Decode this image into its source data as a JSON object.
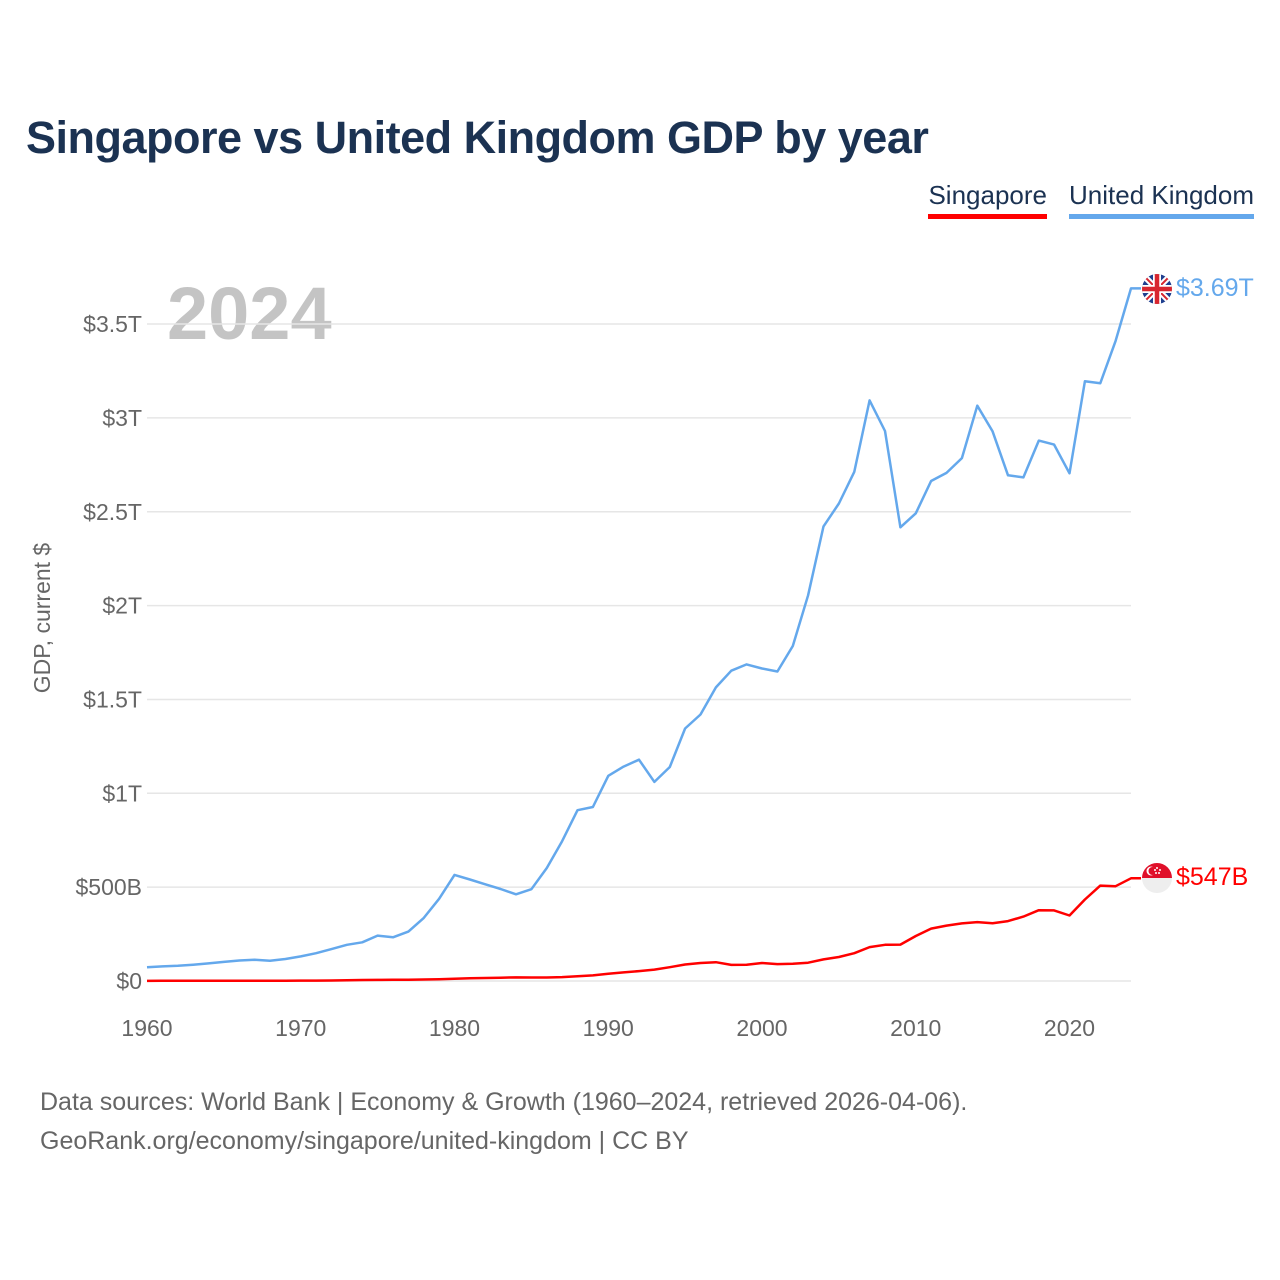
{
  "title": "Singapore vs United Kingdom GDP by year",
  "legend": [
    {
      "label": "Singapore",
      "color": "#ff0000"
    },
    {
      "label": "United Kingdom",
      "color": "#64a8ec"
    }
  ],
  "year_watermark": "2024",
  "source_lines": [
    "Data sources: World Bank | Economy & Growth (1960–2024, retrieved 2026-04-06).",
    "GeoRank.org/economy/singapore/united-kingdom | CC BY"
  ],
  "chart_data": {
    "type": "line",
    "title": "Singapore vs United Kingdom GDP by year",
    "xlabel": "",
    "ylabel": "GDP, current $",
    "xlim": [
      1960,
      2024
    ],
    "ylim": [
      0,
      3.8
    ],
    "y_unit": "trillion USD",
    "grid": true,
    "legend_position": "top-right",
    "x_ticks": [
      1960,
      1970,
      1980,
      1990,
      2000,
      2010,
      2020
    ],
    "x_tick_labels": [
      "1960",
      "1970",
      "1980",
      "1990",
      "2000",
      "2010",
      "2020"
    ],
    "y_ticks": [
      0,
      0.5,
      1,
      1.5,
      2,
      2.5,
      3,
      3.5
    ],
    "y_tick_labels": [
      "$0",
      "$500B",
      "$1T",
      "$1.5T",
      "$2T",
      "$2.5T",
      "$3T",
      "$3.5T"
    ],
    "series": [
      {
        "name": "United Kingdom",
        "color": "#64a8ec",
        "end_label": "$3.69T",
        "values": [
          0.073,
          0.078,
          0.081,
          0.087,
          0.094,
          0.102,
          0.109,
          0.113,
          0.108,
          0.117,
          0.131,
          0.148,
          0.17,
          0.193,
          0.206,
          0.242,
          0.233,
          0.263,
          0.336,
          0.438,
          0.565,
          0.541,
          0.515,
          0.49,
          0.462,
          0.489,
          0.602,
          0.745,
          0.91,
          0.927,
          1.093,
          1.142,
          1.179,
          1.061,
          1.14,
          1.345,
          1.42,
          1.564,
          1.653,
          1.687,
          1.665,
          1.649,
          1.785,
          2.055,
          2.422,
          2.544,
          2.713,
          3.093,
          2.93,
          2.417,
          2.492,
          2.664,
          2.707,
          2.786,
          3.065,
          2.928,
          2.694,
          2.683,
          2.879,
          2.858,
          2.705,
          3.195,
          3.185,
          3.41,
          3.69
        ]
      },
      {
        "name": "Singapore",
        "color": "#ff0000",
        "end_label": "$547B",
        "values": [
          0.0007,
          0.0008,
          0.0008,
          0.0009,
          0.0009,
          0.001,
          0.0011,
          0.0012,
          0.0014,
          0.0016,
          0.0019,
          0.0022,
          0.0028,
          0.0042,
          0.0054,
          0.0061,
          0.0065,
          0.007,
          0.0082,
          0.0098,
          0.0119,
          0.0142,
          0.0161,
          0.0178,
          0.0193,
          0.0189,
          0.0187,
          0.0209,
          0.0252,
          0.03,
          0.0389,
          0.0458,
          0.0528,
          0.0607,
          0.0737,
          0.0879,
          0.096,
          0.1,
          0.0857,
          0.0862,
          0.096,
          0.0898,
          0.092,
          0.0977,
          0.115,
          0.1278,
          0.1481,
          0.1808,
          0.193,
          0.194,
          0.24,
          0.279,
          0.295,
          0.307,
          0.314,
          0.308,
          0.319,
          0.343,
          0.377,
          0.376,
          0.349,
          0.434,
          0.508,
          0.505,
          0.547
        ]
      }
    ]
  }
}
